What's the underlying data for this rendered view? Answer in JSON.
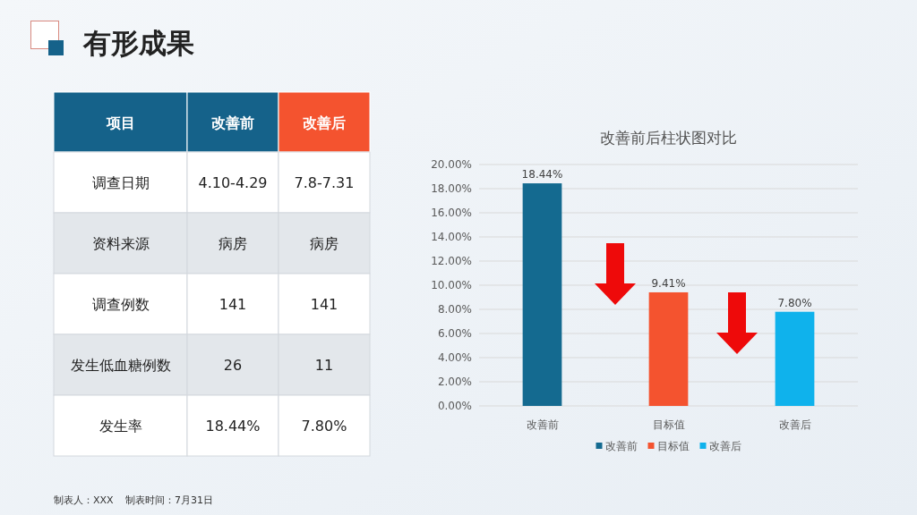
{
  "chart_data": [
    {
      "type": "other",
      "title": "有形成果",
      "categories": [
        "项目",
        "改善前",
        "改善后"
      ],
      "colors": [
        "#15628a",
        "#15628a",
        "#f4532f"
      ],
      "cell_labels": [
        [
          "调查日期",
          "4.10-4.29",
          "7.8-7.31"
        ],
        [
          "资料来源",
          "病房",
          "病房"
        ],
        [
          "调查例数",
          "141",
          "141"
        ],
        [
          "发生低血糖例数",
          "26",
          "11"
        ],
        [
          "发生率",
          "18.44%",
          "7.80%"
        ]
      ],
      "annotations": [
        "制表人：XXX",
        "制表时间：7月31日"
      ]
    },
    {
      "type": "bar",
      "title": "改善前后柱状图对比",
      "categories": [
        "改善前",
        "目标值",
        "改善后"
      ],
      "series": [
        {
          "name": "改善前",
          "color": "#146a90",
          "values": [
            18.44,
            null,
            null
          ],
          "value_labels": [
            "18.44%",
            null,
            null
          ]
        },
        {
          "name": "目标值",
          "color": "#f4532f",
          "values": [
            null,
            9.41,
            null
          ],
          "value_labels": [
            null,
            "9.41%",
            null
          ]
        },
        {
          "name": "改善后",
          "color": "#0fb2ec",
          "values": [
            null,
            null,
            7.8
          ],
          "value_labels": [
            null,
            null,
            "7.80%"
          ]
        }
      ],
      "ylim": [
        0,
        20
      ],
      "yticks": [
        {
          "value": 0,
          "label": "0.00%"
        },
        {
          "value": 2,
          "label": "2.00%"
        },
        {
          "value": 4,
          "label": "4.00%"
        },
        {
          "value": 6,
          "label": "6.00%"
        },
        {
          "value": 8,
          "label": "8.00%"
        },
        {
          "value": 10,
          "label": "10.00%"
        },
        {
          "value": 12,
          "label": "12.00%"
        },
        {
          "value": 14,
          "label": "14.00%"
        },
        {
          "value": 16,
          "label": "16.00%"
        },
        {
          "value": 18,
          "label": "18.00%"
        },
        {
          "value": 20,
          "label": "20.00%"
        }
      ],
      "grid": "y",
      "legend": "bottom"
    }
  ]
}
